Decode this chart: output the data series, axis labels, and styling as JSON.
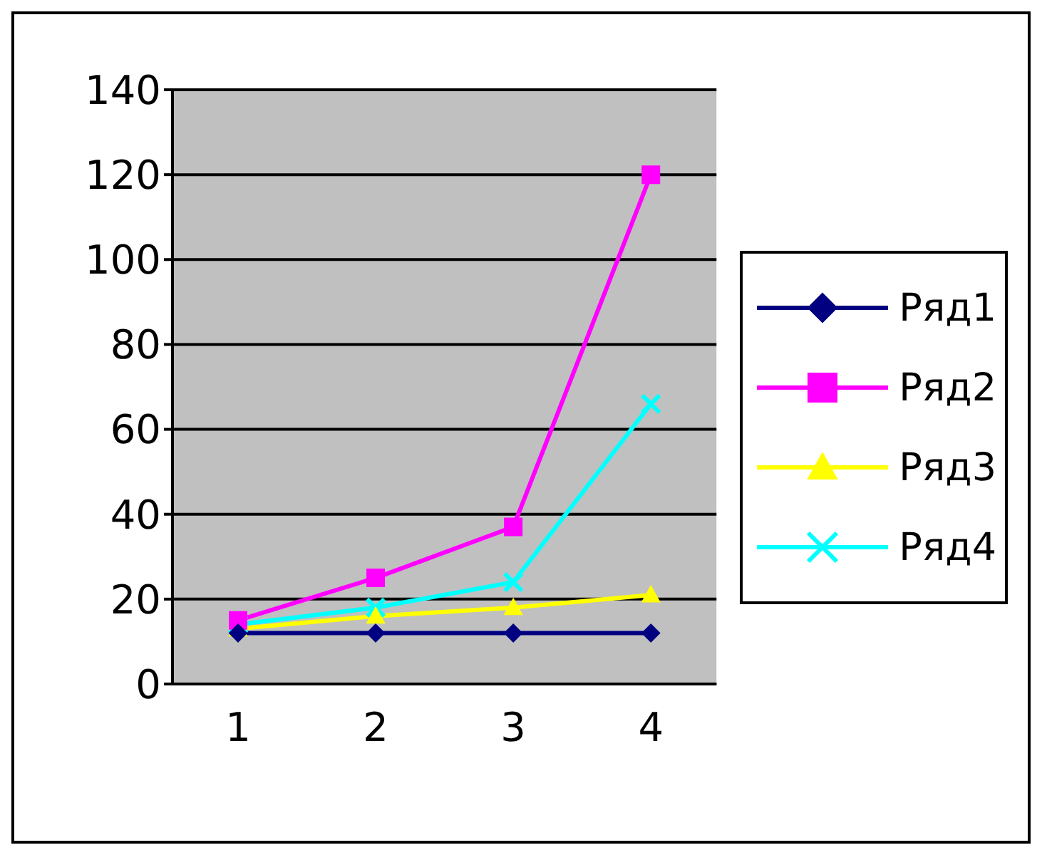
{
  "chart_data": {
    "type": "line",
    "categories": [
      "1",
      "2",
      "3",
      "4"
    ],
    "series": [
      {
        "name": "Ряд1",
        "color": "#000080",
        "marker": "diamond",
        "values": [
          12,
          12,
          12,
          12
        ]
      },
      {
        "name": "Ряд2",
        "color": "#ff00ff",
        "marker": "square",
        "values": [
          15,
          25,
          37,
          120
        ]
      },
      {
        "name": "Ряд3",
        "color": "#ffff00",
        "marker": "triangle",
        "values": [
          13,
          16,
          18,
          21
        ]
      },
      {
        "name": "Ряд4",
        "color": "#00ffff",
        "marker": "cross",
        "values": [
          14,
          18,
          24,
          66
        ]
      }
    ],
    "ylim": [
      0,
      140
    ],
    "yticks": [
      0,
      20,
      40,
      60,
      80,
      100,
      120,
      140
    ],
    "grid": "y",
    "legend": "right"
  }
}
